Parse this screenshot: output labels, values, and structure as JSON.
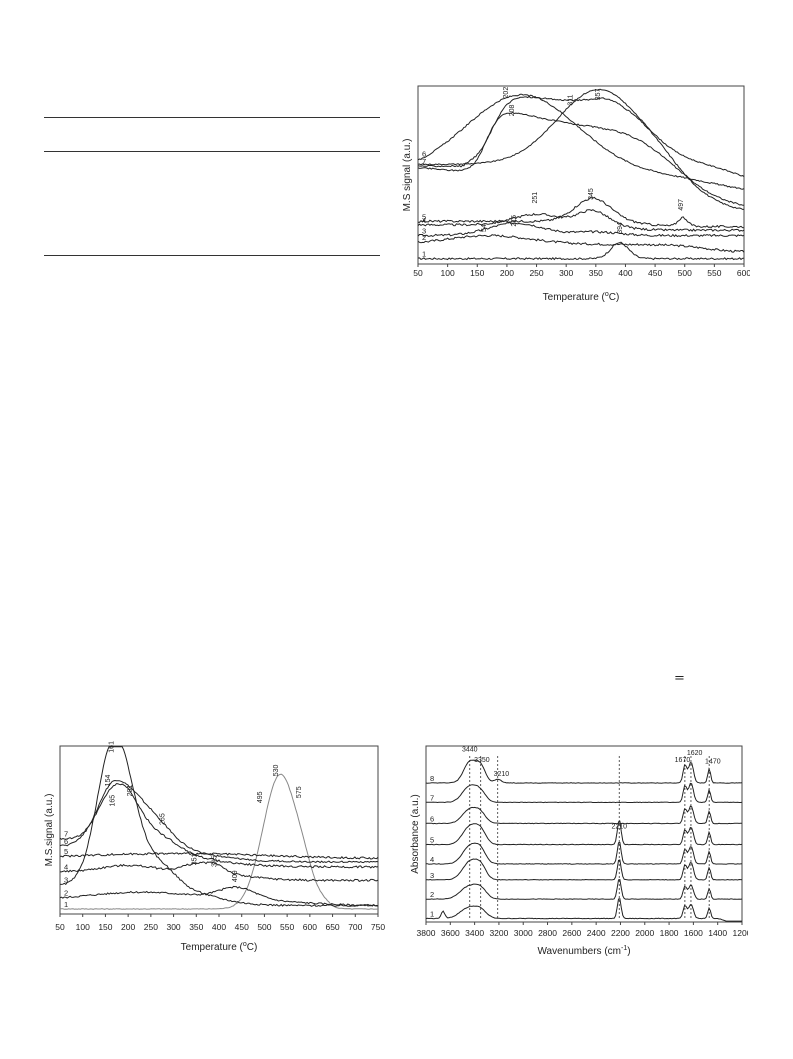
{
  "table_rules": 3,
  "equals_sign": "=",
  "charts": [
    {
      "id": "tpd-a",
      "type": "line",
      "xlabel_main": "Temperature (",
      "xlabel_deg": "o",
      "xlabel_unit": "C)",
      "ylabel": "M.S signal (a.u.)",
      "x_ticks": [
        50,
        100,
        150,
        200,
        250,
        300,
        350,
        400,
        450,
        500,
        550,
        600
      ],
      "xlim": [
        50,
        600
      ],
      "trace_labels": [
        "1",
        "2",
        "3",
        "4",
        "5",
        "6",
        "7"
      ],
      "peak_labels": [
        {
          "text": "202",
          "x": 202,
          "y": 0.93
        },
        {
          "text": "208",
          "x": 212,
          "y": 0.83
        },
        {
          "text": "311",
          "x": 311,
          "y": 0.89
        },
        {
          "text": "357",
          "x": 357,
          "y": 0.92
        },
        {
          "text": "251",
          "x": 251,
          "y": 0.34
        },
        {
          "text": "345",
          "x": 345,
          "y": 0.36
        },
        {
          "text": "497",
          "x": 497,
          "y": 0.3
        },
        {
          "text": "215",
          "x": 215,
          "y": 0.21
        },
        {
          "text": "54",
          "x": 165,
          "y": 0.18
        },
        {
          "text": "394",
          "x": 394,
          "y": 0.17
        }
      ]
    },
    {
      "id": "tpd-b",
      "type": "line",
      "xlabel_main": "Temperature (",
      "xlabel_deg": "o",
      "xlabel_unit": "C)",
      "ylabel": "M.S.signal (a.u.)",
      "x_ticks": [
        50,
        100,
        150,
        200,
        250,
        300,
        350,
        400,
        450,
        500,
        550,
        600,
        650,
        700,
        750
      ],
      "xlim": [
        50,
        750
      ],
      "trace_labels": [
        "1",
        "2",
        "3",
        "4",
        "5",
        "6",
        "7"
      ],
      "peak_labels": [
        {
          "text": "161",
          "x": 168,
          "y": 0.96
        },
        {
          "text": "154",
          "x": 160,
          "y": 0.76
        },
        {
          "text": "201",
          "x": 208,
          "y": 0.7
        },
        {
          "text": "165",
          "x": 170,
          "y": 0.64
        },
        {
          "text": "265",
          "x": 280,
          "y": 0.53
        },
        {
          "text": "530",
          "x": 530,
          "y": 0.82
        },
        {
          "text": "495",
          "x": 495,
          "y": 0.66
        },
        {
          "text": "575",
          "x": 580,
          "y": 0.69
        },
        {
          "text": "351",
          "x": 351,
          "y": 0.29
        },
        {
          "text": "395",
          "x": 395,
          "y": 0.28
        },
        {
          "text": "409",
          "x": 440,
          "y": 0.19
        }
      ]
    },
    {
      "id": "ir",
      "type": "line",
      "xlabel_main": "Wavenumbers (cm",
      "xlabel_deg": "-1",
      "xlabel_unit": ")",
      "ylabel": "Absorbance (a.u.)",
      "x_ticks": [
        3800,
        3600,
        3400,
        3200,
        3000,
        2800,
        2600,
        2400,
        2200,
        2000,
        1800,
        1600,
        1400,
        1200
      ],
      "xlim": [
        3800,
        1200
      ],
      "trace_labels": [
        "1",
        "2",
        "3",
        "4",
        "5",
        "6",
        "7",
        "8"
      ],
      "peak_labels": [
        {
          "text": "3440",
          "x": 3440,
          "y": 0.97
        },
        {
          "text": "3350",
          "x": 3340,
          "y": 0.91
        },
        {
          "text": "3210",
          "x": 3180,
          "y": 0.83
        },
        {
          "text": "2210",
          "x": 2210,
          "y": 0.53
        },
        {
          "text": "1670",
          "x": 1690,
          "y": 0.91
        },
        {
          "text": "1620",
          "x": 1590,
          "y": 0.95
        },
        {
          "text": "1470",
          "x": 1440,
          "y": 0.9
        }
      ],
      "dashed_lines": [
        3440,
        3350,
        3210,
        2210,
        1670,
        1620,
        1470
      ]
    }
  ]
}
